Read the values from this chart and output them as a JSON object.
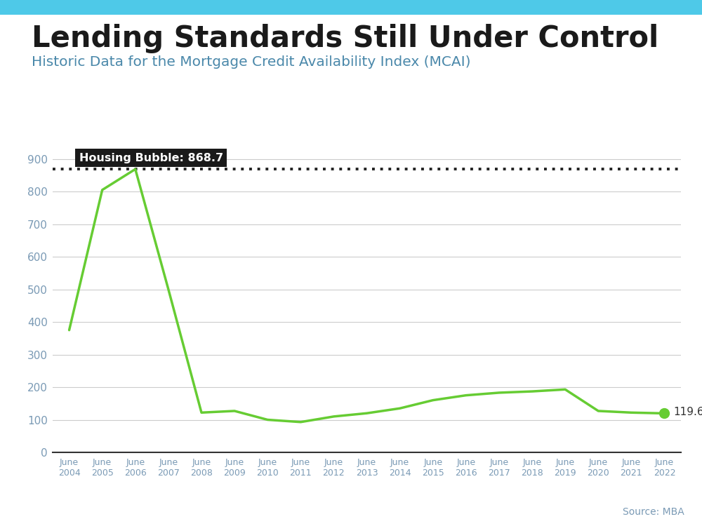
{
  "title": "Lending Standards Still Under Control",
  "subtitle": "Historic Data for the Mortgage Credit Availability Index (MCAI)",
  "source": "Source: MBA",
  "title_color": "#1a1a1a",
  "subtitle_color": "#4a88aa",
  "source_color": "#7a9ab5",
  "top_bar_color": "#4ec9e8",
  "background_color": "#ffffff",
  "line_color": "#66cc33",
  "dot_color": "#66cc33",
  "bubble_label_text": "Housing Bubble: 868.7",
  "bubble_bg": "#1a1a1a",
  "bubble_text_color": "#ffffff",
  "bubble_value": 868.7,
  "last_value": 119.6,
  "dotted_line_color": "#222222",
  "grid_color": "#cccccc",
  "axis_label_color": "#7a9ab5",
  "years": [
    "June\n2004",
    "June\n2005",
    "June\n2006",
    "June\n2007",
    "June\n2008",
    "June\n2009",
    "June\n2010",
    "June\n2011",
    "June\n2012",
    "June\n2013",
    "June\n2014",
    "June\n2015",
    "June\n2016",
    "June\n2017",
    "June\n2018",
    "June\n2019",
    "June\n2020",
    "June\n2021",
    "June\n2022"
  ],
  "values": [
    375,
    805,
    868.7,
    500,
    122,
    127,
    100,
    93,
    110,
    120,
    135,
    160,
    175,
    183,
    187,
    193,
    127,
    122,
    119.6
  ],
  "yticks": [
    0,
    100,
    200,
    300,
    400,
    500,
    600,
    700,
    800,
    900
  ],
  "ylim": [
    0,
    960
  ],
  "figsize": [
    10.0,
    7.5
  ],
  "dpi": 100
}
